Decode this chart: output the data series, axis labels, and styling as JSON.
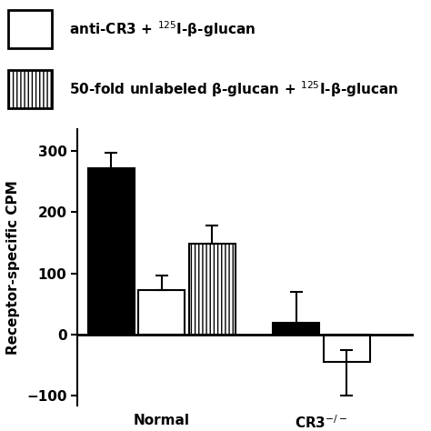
{
  "groups": [
    "Normal",
    "CR3$^{-/-}$"
  ],
  "bar_values": {
    "black": [
      272,
      20
    ],
    "white": [
      72,
      -45
    ],
    "hatched": [
      148,
      null
    ]
  },
  "error_bars": {
    "black_up": [
      25,
      50
    ],
    "black_down": [
      0,
      0
    ],
    "white_up": [
      25,
      20
    ],
    "white_down": [
      0,
      55
    ],
    "hatched_up": [
      30,
      null
    ],
    "hatched_down": [
      0,
      null
    ]
  },
  "ylabel": "Receptor-specific CPM",
  "ylim": [
    -115,
    335
  ],
  "yticks": [
    -100,
    0,
    100,
    200,
    300
  ],
  "legend_label_white": "anti-CR3 + $^{125}$I-β-glucan",
  "legend_label_hatched": "50-fold unlabeled β-glucan + $^{125}$I-β-glucan",
  "bar_width": 0.55,
  "group_positions": [
    1.0,
    3.2
  ],
  "bar_gap": 0.6,
  "background_color": "#ffffff",
  "bar_edge_color": "#000000",
  "black_fill": "#000000",
  "white_fill": "#ffffff",
  "hatch_pattern": "||||"
}
